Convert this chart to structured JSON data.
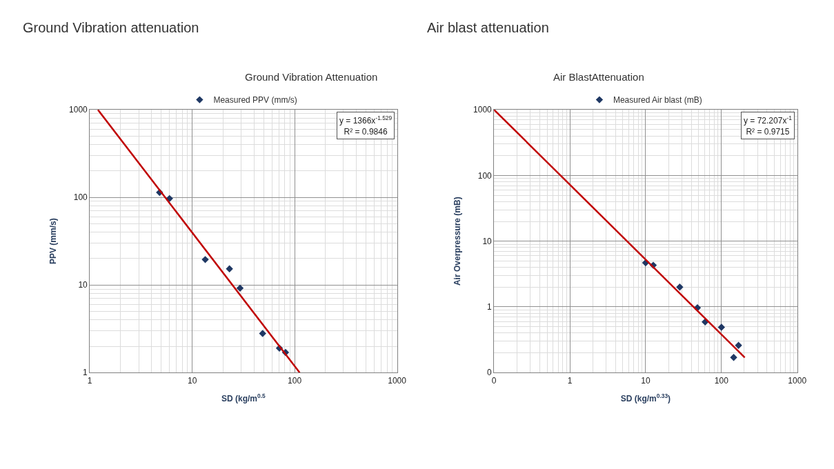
{
  "chart_data": [
    {
      "type": "scatter",
      "title": "Ground Vibration Attenuation",
      "xlabel": "SD (kg/m$^{0.5}$",
      "ylabel": "PPV (mm/s)",
      "log": "xy",
      "grid": true,
      "legend": "top",
      "annotations": [
        "Ground Vibration attenuation",
        "y = 1366x$^{-1.529}$\nR² = 0.9846"
      ],
      "xlim": [
        1,
        1000
      ],
      "ylim": [
        1,
        1000
      ],
      "xticks": [
        1,
        10,
        100,
        1000
      ],
      "yticks": [
        1,
        10,
        100,
        1000
      ],
      "series": [
        {
          "name": "Measured PPV (mm/s)",
          "color": "#1f3864",
          "marker": "diamond",
          "x": [
            4.8,
            6.0,
            13.4,
            23.1,
            29.3,
            48.7,
            71,
            81.5
          ],
          "values": [
            114,
            97,
            19.5,
            15.3,
            9.2,
            2.8,
            1.9,
            1.7
          ]
        },
        {
          "type": "line",
          "color": "#c00000",
          "marker": "none",
          "x": [
            1.2,
            112
          ],
          "values": [
            1000,
            1
          ]
        }
      ]
    },
    {
      "type": "scatter",
      "title": "Air BlastAttenuation",
      "xlabel": "SD (kg/m$^{0.33}$)",
      "ylabel": "Air Overpressure (mB)",
      "log": "xy",
      "grid": true,
      "legend": "top",
      "annotations": [
        "Air blast attenuation",
        "y = 72.207x$^{-1}$\nR² = 0.9715"
      ],
      "xlim": [
        0.1,
        1000
      ],
      "ylim": [
        0.1,
        1000
      ],
      "xticks": [
        {
          "value": 0.1,
          "label": "0"
        },
        1,
        10,
        100,
        1000
      ],
      "yticks": [
        {
          "value": 0.1,
          "label": "0"
        },
        1,
        10,
        100,
        1000
      ],
      "series": [
        {
          "name": "Measured Air blast (mB)",
          "color": "#1f3864",
          "marker": "diamond",
          "x": [
            10.0,
            12.6,
            28.2,
            48.2,
            61,
            100,
            145,
            168
          ],
          "values": [
            4.7,
            4.3,
            2.0,
            0.97,
            0.59,
            0.49,
            0.17,
            0.26
          ]
        },
        {
          "type": "line",
          "color": "#c00000",
          "marker": "none",
          "x": [
            0.1,
            203
          ],
          "values": [
            1000,
            0.17
          ]
        }
      ]
    }
  ]
}
